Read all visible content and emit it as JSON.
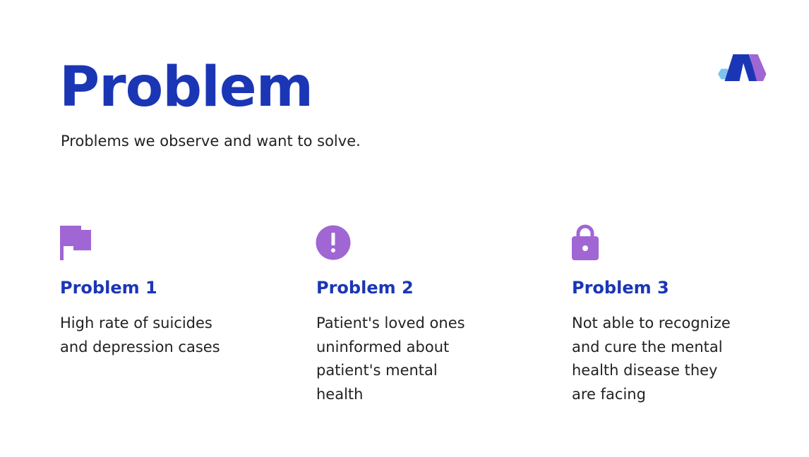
{
  "slide": {
    "title": "Problem",
    "subtitle": "Problems we observe and want to solve."
  },
  "logo": {
    "icon": "brand-m-logo-icon",
    "colors": [
      "#1b36b5",
      "#a066d3",
      "#7ec3ee"
    ]
  },
  "cards": [
    {
      "icon": "flag-icon",
      "title": "Problem 1",
      "text": "High rate of suicides and depression cases"
    },
    {
      "icon": "exclamation-circle-icon",
      "title": "Problem 2",
      "text": "Patient's loved ones uninformed about patient's mental health"
    },
    {
      "icon": "lock-icon",
      "title": "Problem 3",
      "text": "Not able to recognize and cure the mental health disease they are facing"
    }
  ],
  "colors": {
    "accent": "#1b36b5",
    "icon": "#a066d3",
    "text": "#222222",
    "background": "#ffffff"
  }
}
